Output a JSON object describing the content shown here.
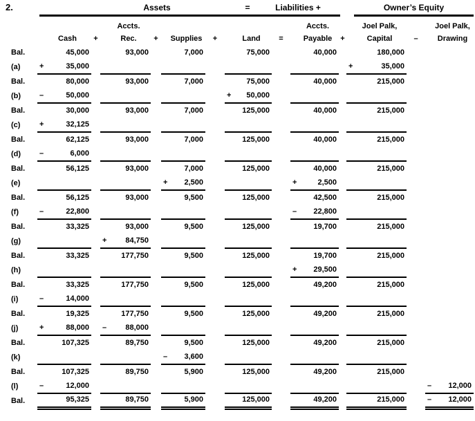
{
  "worksheet": {
    "item_number": "2.",
    "section_headers": {
      "assets": "Assets",
      "equals": "=",
      "liabilities": "Liabilities  +",
      "owners_equity": "Owner’s Equity"
    },
    "columns": [
      {
        "key": "cash",
        "line1": "",
        "line2": "Cash",
        "sep_after": "+"
      },
      {
        "key": "accts_rec",
        "line1": "Accts.",
        "line2": "Rec.",
        "sep_after": "+"
      },
      {
        "key": "supplies",
        "line1": "",
        "line2": "Supplies",
        "sep_after": "+"
      },
      {
        "key": "land",
        "line1": "",
        "line2": "Land",
        "sep_after": "="
      },
      {
        "key": "accts_payable",
        "line1": "Accts.",
        "line2": "Payable",
        "sep_after": "+"
      },
      {
        "key": "capital",
        "line1": "Joel Palk,",
        "line2": "Capital",
        "sep_after": "–"
      },
      {
        "key": "drawing",
        "line1": "Joel Palk,",
        "line2": "Drawing",
        "sep_after": ""
      }
    ],
    "rows": [
      {
        "label": "Bal.",
        "type": "balance",
        "cells": {
          "cash": {
            "v": "45,000"
          },
          "accts_rec": {
            "v": "93,000"
          },
          "supplies": {
            "v": "7,000"
          },
          "land": {
            "v": "75,000"
          },
          "accts_payable": {
            "v": "40,000"
          },
          "capital": {
            "v": "180,000"
          }
        }
      },
      {
        "label": "(a)",
        "type": "transaction",
        "cells": {
          "cash": {
            "s": "+",
            "v": "35,000"
          },
          "capital": {
            "s": "+",
            "v": "35,000"
          }
        },
        "underline": [
          "cash",
          "accts_rec",
          "supplies",
          "land",
          "accts_payable",
          "capital"
        ]
      },
      {
        "label": "Bal.",
        "type": "balance",
        "cells": {
          "cash": {
            "v": "80,000"
          },
          "accts_rec": {
            "v": "93,000"
          },
          "supplies": {
            "v": "7,000"
          },
          "land": {
            "v": "75,000"
          },
          "accts_payable": {
            "v": "40,000"
          },
          "capital": {
            "v": "215,000"
          }
        }
      },
      {
        "label": "(b)",
        "type": "transaction",
        "cells": {
          "cash": {
            "s": "–",
            "v": "50,000"
          },
          "land": {
            "s": "+",
            "v": "50,000"
          }
        },
        "underline": [
          "cash",
          "accts_rec",
          "supplies",
          "land",
          "accts_payable",
          "capital"
        ]
      },
      {
        "label": "Bal.",
        "type": "balance",
        "cells": {
          "cash": {
            "v": "30,000"
          },
          "accts_rec": {
            "v": "93,000"
          },
          "supplies": {
            "v": "7,000"
          },
          "land": {
            "v": "125,000"
          },
          "accts_payable": {
            "v": "40,000"
          },
          "capital": {
            "v": "215,000"
          }
        }
      },
      {
        "label": "(c)",
        "type": "transaction",
        "cells": {
          "cash": {
            "s": "+",
            "v": "32,125"
          }
        },
        "underline": [
          "cash",
          "accts_rec",
          "supplies",
          "land",
          "accts_payable",
          "capital"
        ]
      },
      {
        "label": "Bal.",
        "type": "balance",
        "cells": {
          "cash": {
            "v": "62,125"
          },
          "accts_rec": {
            "v": "93,000"
          },
          "supplies": {
            "v": "7,000"
          },
          "land": {
            "v": "125,000"
          },
          "accts_payable": {
            "v": "40,000"
          },
          "capital": {
            "v": "215,000"
          }
        }
      },
      {
        "label": "(d)",
        "type": "transaction",
        "cells": {
          "cash": {
            "s": "–",
            "v": "6,000"
          }
        },
        "underline": [
          "cash",
          "accts_rec",
          "supplies",
          "land",
          "accts_payable",
          "capital"
        ]
      },
      {
        "label": "Bal.",
        "type": "balance",
        "cells": {
          "cash": {
            "v": "56,125"
          },
          "accts_rec": {
            "v": "93,000"
          },
          "supplies": {
            "v": "7,000"
          },
          "land": {
            "v": "125,000"
          },
          "accts_payable": {
            "v": "40,000"
          },
          "capital": {
            "v": "215,000"
          }
        }
      },
      {
        "label": "(e)",
        "type": "transaction",
        "cells": {
          "supplies": {
            "s": "+",
            "v": "2,500"
          },
          "accts_payable": {
            "s": "+",
            "v": "2,500"
          }
        },
        "underline": [
          "cash",
          "accts_rec",
          "supplies",
          "land",
          "accts_payable",
          "capital"
        ]
      },
      {
        "label": "Bal.",
        "type": "balance",
        "cells": {
          "cash": {
            "v": "56,125"
          },
          "accts_rec": {
            "v": "93,000"
          },
          "supplies": {
            "v": "9,500"
          },
          "land": {
            "v": "125,000"
          },
          "accts_payable": {
            "v": "42,500"
          },
          "capital": {
            "v": "215,000"
          }
        }
      },
      {
        "label": "(f)",
        "type": "transaction",
        "cells": {
          "cash": {
            "s": "–",
            "v": "22,800"
          },
          "accts_payable": {
            "s": "–",
            "v": "22,800"
          }
        },
        "underline": [
          "cash",
          "accts_rec",
          "supplies",
          "land",
          "accts_payable",
          "capital"
        ]
      },
      {
        "label": "Bal.",
        "type": "balance",
        "cells": {
          "cash": {
            "v": "33,325"
          },
          "accts_rec": {
            "v": "93,000"
          },
          "supplies": {
            "v": "9,500"
          },
          "land": {
            "v": "125,000"
          },
          "accts_payable": {
            "v": "19,700"
          },
          "capital": {
            "v": "215,000"
          }
        }
      },
      {
        "label": "(g)",
        "type": "transaction",
        "cells": {
          "accts_rec": {
            "s": "+",
            "v": "84,750"
          }
        },
        "underline": [
          "cash",
          "accts_rec",
          "supplies",
          "land",
          "accts_payable",
          "capital"
        ]
      },
      {
        "label": "Bal.",
        "type": "balance",
        "cells": {
          "cash": {
            "v": "33,325"
          },
          "accts_rec": {
            "v": "177,750"
          },
          "supplies": {
            "v": "9,500"
          },
          "land": {
            "v": "125,000"
          },
          "accts_payable": {
            "v": "19,700"
          },
          "capital": {
            "v": "215,000"
          }
        }
      },
      {
        "label": "(h)",
        "type": "transaction",
        "cells": {
          "accts_payable": {
            "s": "+",
            "v": "29,500"
          }
        },
        "underline": [
          "cash",
          "accts_rec",
          "supplies",
          "land",
          "accts_payable",
          "capital"
        ]
      },
      {
        "label": "Bal.",
        "type": "balance",
        "cells": {
          "cash": {
            "v": "33,325"
          },
          "accts_rec": {
            "v": "177,750"
          },
          "supplies": {
            "v": "9,500"
          },
          "land": {
            "v": "125,000"
          },
          "accts_payable": {
            "v": "49,200"
          },
          "capital": {
            "v": "215,000"
          }
        }
      },
      {
        "label": "(i)",
        "type": "transaction",
        "cells": {
          "cash": {
            "s": "–",
            "v": "14,000"
          }
        },
        "underline": [
          "cash",
          "accts_rec",
          "supplies",
          "land",
          "accts_payable",
          "capital"
        ]
      },
      {
        "label": "Bal.",
        "type": "balance",
        "cells": {
          "cash": {
            "v": "19,325"
          },
          "accts_rec": {
            "v": "177,750"
          },
          "supplies": {
            "v": "9,500"
          },
          "land": {
            "v": "125,000"
          },
          "accts_payable": {
            "v": "49,200"
          },
          "capital": {
            "v": "215,000"
          }
        }
      },
      {
        "label": "(j)",
        "type": "transaction",
        "cells": {
          "cash": {
            "s": "+",
            "v": "88,000"
          },
          "accts_rec": {
            "s": "–",
            "v": "88,000"
          }
        },
        "underline": [
          "cash",
          "accts_rec",
          "supplies",
          "land",
          "accts_payable",
          "capital"
        ]
      },
      {
        "label": "Bal.",
        "type": "balance",
        "cells": {
          "cash": {
            "v": "107,325"
          },
          "accts_rec": {
            "v": "89,750"
          },
          "supplies": {
            "v": "9,500"
          },
          "land": {
            "v": "125,000"
          },
          "accts_payable": {
            "v": "49,200"
          },
          "capital": {
            "v": "215,000"
          }
        }
      },
      {
        "label": "(k)",
        "type": "transaction",
        "cells": {
          "supplies": {
            "s": "–",
            "v": "3,600"
          }
        },
        "underline": [
          "cash",
          "accts_rec",
          "supplies",
          "land",
          "accts_payable",
          "capital"
        ]
      },
      {
        "label": "Bal.",
        "type": "balance",
        "cells": {
          "cash": {
            "v": "107,325"
          },
          "accts_rec": {
            "v": "89,750"
          },
          "supplies": {
            "v": "5,900"
          },
          "land": {
            "v": "125,000"
          },
          "accts_payable": {
            "v": "49,200"
          },
          "capital": {
            "v": "215,000"
          }
        }
      },
      {
        "label": "(l)",
        "type": "transaction",
        "cells": {
          "cash": {
            "s": "–",
            "v": "12,000"
          },
          "drawing": {
            "s": "–",
            "v": "12,000"
          }
        },
        "underline": [
          "cash",
          "accts_rec",
          "supplies",
          "land",
          "accts_payable",
          "capital",
          "drawing"
        ]
      },
      {
        "label": "Bal.",
        "type": "final-balance",
        "double": true,
        "cells": {
          "cash": {
            "v": "95,325"
          },
          "accts_rec": {
            "v": "89,750"
          },
          "supplies": {
            "v": "5,900"
          },
          "land": {
            "v": "125,000"
          },
          "accts_payable": {
            "v": "49,200"
          },
          "capital": {
            "v": "215,000"
          },
          "drawing": {
            "s": "–",
            "v": "12,000"
          }
        },
        "underline": [
          "cash",
          "accts_rec",
          "supplies",
          "land",
          "accts_payable",
          "capital",
          "drawing"
        ]
      }
    ]
  }
}
